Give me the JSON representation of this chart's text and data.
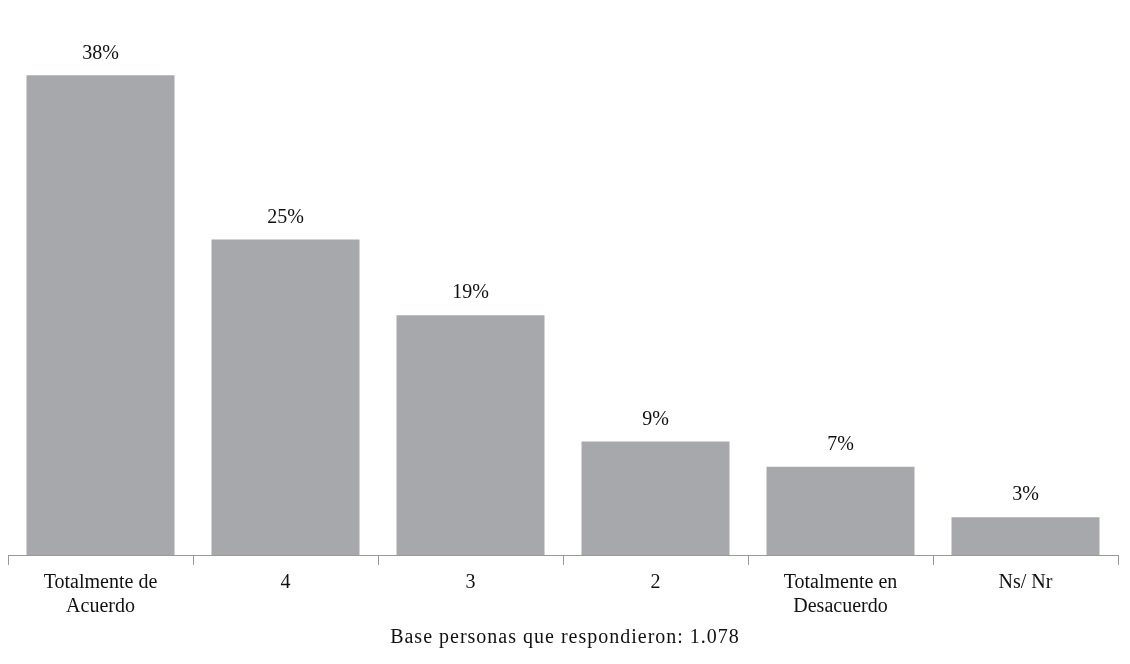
{
  "chart_data": {
    "type": "bar",
    "categories": [
      "Totalmente de Acuerdo",
      "4",
      "3",
      "2",
      "Totalmente en Desacuerdo",
      "Ns/ Nr"
    ],
    "values": [
      38,
      25,
      19,
      9,
      7,
      3
    ],
    "color": "#a7a8ab",
    "value_labels": [
      "38%",
      "25%",
      "19%",
      "9%",
      "7%",
      "3%"
    ],
    "grid": false,
    "legend": false,
    "annotations": [
      "Base personas que respondieron: 1.078"
    ]
  }
}
